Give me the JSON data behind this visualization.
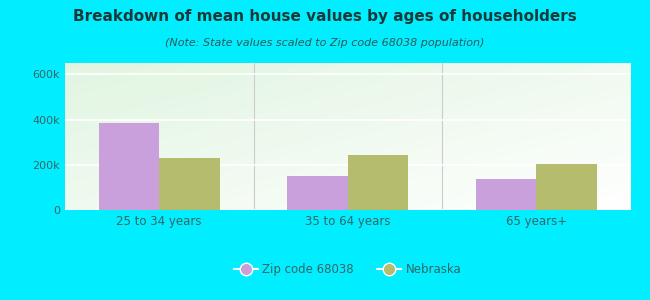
{
  "title": "Breakdown of mean house values by ages of householders",
  "subtitle": "(Note: State values scaled to Zip code 68038 population)",
  "categories": [
    "25 to 34 years",
    "35 to 64 years",
    "65 years+"
  ],
  "zip_values": [
    385000,
    150000,
    135000
  ],
  "state_values": [
    230000,
    245000,
    205000
  ],
  "zip_color": "#c9a0dc",
  "state_color": "#b5bc6e",
  "ylim": [
    0,
    650000
  ],
  "yticks": [
    0,
    200000,
    400000,
    600000
  ],
  "ytick_labels": [
    "0",
    "200k",
    "400k",
    "600k"
  ],
  "background_outer": "#00eeff",
  "legend_zip_label": "Zip code 68038",
  "legend_state_label": "Nebraska",
  "title_fontsize": 11,
  "subtitle_fontsize": 8,
  "title_color": "#1a3a3a",
  "subtitle_color": "#2a5a5a",
  "tick_color": "#336666",
  "bar_width": 0.32
}
